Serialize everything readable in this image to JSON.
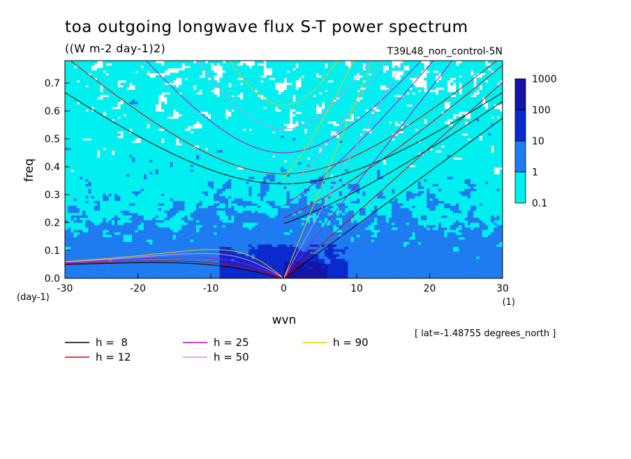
{
  "chart_data": {
    "type": "heatmap",
    "title": "toa outgoing longwave flux S-T power spectrum",
    "units": "((W m-2 day-1)2)",
    "run_label": "T39L48_non_control-5N",
    "xlabel": "wvn",
    "ylabel": "freq",
    "x_unit": "(1)",
    "y_unit": "(day-1)",
    "lat_note": "[ lat=-1.48755 degrees_north ]",
    "xlim": [
      -30,
      30
    ],
    "ylim": [
      0,
      0.78
    ],
    "xticks": [
      -30,
      -20,
      -10,
      0,
      10,
      20,
      30
    ],
    "xtick_labels": [
      "-30",
      "-20",
      "-10",
      "0",
      "10",
      "20",
      "30"
    ],
    "yticks": [
      0,
      0.1,
      0.2,
      0.3,
      0.4,
      0.5,
      0.6,
      0.7
    ],
    "ytick_labels": [
      "0.0",
      "0.1",
      "0.2",
      "0.3",
      "0.4",
      "0.5",
      "0.6",
      "0.7"
    ],
    "colorbar": {
      "levels": [
        "0.1",
        "1",
        "10",
        "100",
        "1000"
      ],
      "colors": [
        "#00f0f0",
        "#1e7bf0",
        "#0a2ad0",
        "#1414a8"
      ]
    },
    "dispersion_curves": [
      {
        "label": "h =  8",
        "h": 8,
        "color": "#000000"
      },
      {
        "label": "h = 12",
        "h": 12,
        "color": "#e00000"
      },
      {
        "label": "h = 25",
        "h": 25,
        "color": "#d000b8"
      },
      {
        "label": "h = 50",
        "h": 50,
        "color": "#e28ae2"
      },
      {
        "label": "h = 90",
        "h": 90,
        "color": "#f0c800"
      }
    ],
    "extra_lines": [
      {
        "name": "kelvin h=90 tail",
        "color": "#d0f060"
      }
    ]
  }
}
